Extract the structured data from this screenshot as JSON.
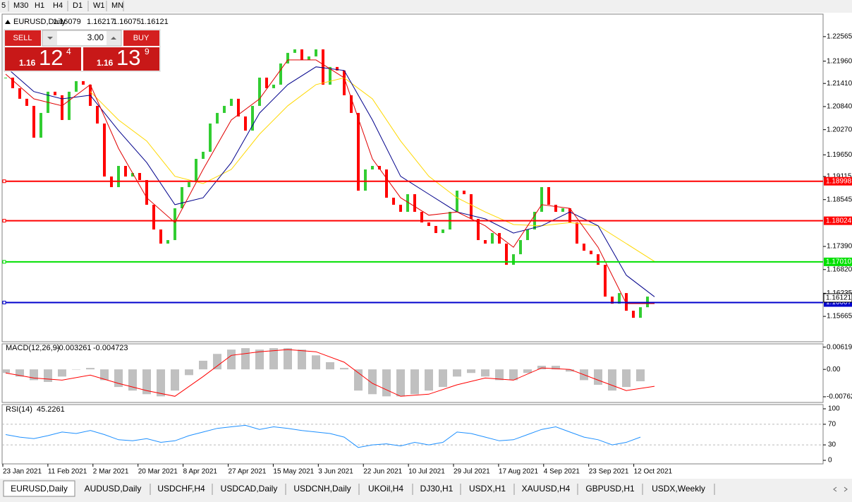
{
  "toolbar": {
    "periods": [
      "5",
      "M30",
      "H1",
      "H4",
      "D1",
      "W1",
      "MN"
    ]
  },
  "trade_panel": {
    "sell": "SELL",
    "buy": "BUY",
    "volume": "3.00",
    "bid": {
      "big": "1.16",
      "pips": "12",
      "point": "4"
    },
    "ask": {
      "big": "1.16",
      "pips": "13",
      "point": "9"
    }
  },
  "price_chart": {
    "type": "candlestick",
    "title": "EURUSD,Daily",
    "ohlc": [
      1.16079,
      1.16217,
      1.16075,
      1.16121
    ],
    "ylim": [
      1.1504,
      1.2312
    ],
    "yticks": [
      1.22565,
      {
        "value": 1.2196,
        "label": "1.21960"
      },
      {
        "value": 1.2141,
        "label": "1.21410"
      },
      {
        "value": 1.2084,
        "label": "1.20840"
      },
      {
        "value": 1.2027,
        "label": "1.20270"
      },
      {
        "value": 1.1965,
        "label": "1.19650"
      },
      1.19115,
      1.18545,
      {
        "value": 1.1739,
        "label": "1.17390"
      },
      {
        "value": 1.1682,
        "label": "1.16820"
      },
      1.16235,
      1.15665
    ],
    "up_color": "#32cd32",
    "down_color": "#ff0000",
    "closes": [
      1.21554,
      1.21293,
      1.21032,
      1.20857,
      1.20073,
      1.20683,
      1.21206,
      1.21119,
      1.20509,
      1.21206,
      1.21467,
      1.2138,
      1.20857,
      1.20422,
      1.19115,
      1.18853,
      1.19376,
      1.19115,
      1.19202,
      1.19028,
      1.18418,
      1.17808,
      1.1746,
      1.17547,
      1.18331,
      1.18853,
      1.18975,
      1.1955,
      1.19725,
      1.20422,
      1.20683,
      1.20857,
      1.21032,
      1.20596,
      1.20247,
      1.20857,
      1.21554,
      1.21293,
      1.2138,
      1.21903,
      1.22164,
      1.22251,
      1.2199,
      1.22077,
      1.22251,
      1.2138,
      1.21816,
      1.21729,
      1.21119,
      1.20683,
      1.18766,
      1.19289,
      1.19376,
      1.19289,
      1.18592,
      1.18418,
      1.18244,
      1.18679,
      1.18244,
      1.17982,
      1.17895,
      1.17721,
      1.17808,
      1.18244,
      1.18766,
      1.18679,
      1.18069,
      1.17547,
      1.1746,
      1.17721,
      1.1746,
      1.16937,
      1.17198,
      1.17547,
      1.17808,
      1.18244,
      1.18853,
      1.18418,
      1.18244,
      1.18331,
      1.17982,
      1.1746,
      1.17285,
      1.17198,
      1.16937,
      1.16153,
      1.15978,
      1.1624,
      1.15804,
      1.1563,
      1.15891,
      1.16153
    ],
    "ma": [
      {
        "color": "#ffd800",
        "values": [
          null,
          null,
          null,
          1.2121,
          1.2051,
          1.1999,
          1.1912,
          1.1894,
          1.1929,
          1.2016,
          1.2086,
          1.2138,
          1.2155,
          1.2103,
          1.1999,
          1.1912,
          1.1859,
          1.1824,
          1.1793,
          1.179,
          1.1798,
          1.179,
          1.1746,
          1.1702
        ]
      },
      {
        "color": "#00008b",
        "values": [
          1.2182,
          1.2121,
          1.2103,
          1.2112,
          1.2025,
          1.1946,
          1.1842,
          1.1859,
          1.1946,
          1.2068,
          1.2138,
          1.2182,
          1.2173,
          1.2051,
          1.1912,
          1.1868,
          1.1824,
          1.1807,
          1.1772,
          1.179,
          1.1824,
          1.179,
          1.1668,
          1.1615
        ]
      },
      {
        "color": "#e00000",
        "values": [
          1.2164,
          1.2103,
          1.2086,
          1.2138,
          1.1981,
          1.1859,
          1.1798,
          1.1929,
          1.2051,
          1.2103,
          1.2199,
          1.2199,
          1.2155,
          1.1955,
          1.1859,
          1.1816,
          1.1824,
          1.179,
          1.1737,
          1.1842,
          1.1833,
          1.1737,
          1.1598,
          1.1598
        ]
      }
    ],
    "levels": [
      {
        "price": 1.18998,
        "color": "#ff0000"
      },
      {
        "price": 1.18024,
        "color": "#ff0000"
      },
      {
        "price": {
          "value": 1.1701,
          "label": "1.17010"
        },
        "color": "#00e000"
      },
      {
        "price": 1.16007,
        "color": "#0000cd"
      }
    ],
    "current_price": 1.16121
  },
  "macd": {
    "type": "bar",
    "title": "MACD(12,26,9)",
    "readouts": [
      -0.003261,
      -0.004723
    ],
    "ylim": [
      -0.0092,
      0.0071
    ],
    "yticks": [
      0.006193,
      {
        "value": 0,
        "label": "0.00"
      },
      -0.007621
    ],
    "histogram_color": "#c0c0c0",
    "histogram": [
      -0.001,
      -0.002,
      -0.003,
      -0.0035,
      -0.002,
      0,
      0.0004,
      -0.003,
      -0.0049,
      -0.0059,
      -0.0069,
      -0.0075,
      -0.0059,
      -0.0016,
      0.0024,
      0.0043,
      0.0055,
      0.0059,
      0.0055,
      0.0059,
      0.0059,
      0.0055,
      0.0039,
      0.002,
      0.0004,
      -0.0059,
      -0.0069,
      -0.0075,
      -0.0075,
      -0.0069,
      -0.0059,
      -0.0049,
      -0.002,
      -0.001,
      -0.002,
      -0.003,
      -0.003,
      -0.001,
      0.001,
      0.001,
      -0.0006,
      -0.003,
      -0.0043,
      -0.0059,
      -0.0049,
      -0.0033
    ],
    "signal": {
      "color": "#ff0000",
      "values": [
        -0.001,
        -0.0024,
        -0.003,
        -0.0016,
        -0.0039,
        -0.0059,
        -0.0075,
        -0.002,
        0.0039,
        0.0049,
        0.0055,
        0.0049,
        0.002,
        -0.0039,
        -0.0075,
        -0.0069,
        -0.0043,
        -0.0024,
        -0.003,
        0.0004,
        0,
        -0.003,
        -0.0059,
        -0.0047
      ]
    }
  },
  "rsi": {
    "type": "line",
    "title": "RSI(14)",
    "readout": 45.2261,
    "ylim": [
      0,
      100
    ],
    "yticks": [
      100,
      70,
      30,
      0
    ],
    "levels": [
      70,
      30
    ],
    "color": "#1e90ff",
    "values": [
      50,
      45,
      42,
      48,
      55,
      52,
      58,
      50,
      40,
      38,
      42,
      35,
      38,
      48,
      55,
      62,
      65,
      68,
      60,
      65,
      62,
      58,
      55,
      52,
      45,
      25,
      30,
      32,
      28,
      35,
      30,
      35,
      55,
      52,
      45,
      38,
      40,
      50,
      60,
      65,
      55,
      45,
      40,
      30,
      35,
      45
    ]
  },
  "x_axis": {
    "dates": [
      "23 Jan 2021",
      "11 Feb 2021",
      "2 Mar 2021",
      "20 Mar 2021",
      "8 Apr 2021",
      "27 Apr 2021",
      "15 May 2021",
      "3 Jun 2021",
      "22 Jun 2021",
      "10 Jul 2021",
      "29 Jul 2021",
      "17 Aug 2021",
      "4 Sep 2021",
      "23 Sep 2021",
      "12 Oct 2021"
    ]
  },
  "tabs": [
    "EURUSD,Daily",
    "AUDUSD,Daily",
    "USDCHF,H4",
    "USDCAD,Daily",
    "USDCNH,Daily",
    "UKOil,H4",
    "DJ30,H1",
    "USDX,H1",
    "XAUUSD,H4",
    "GBPUSD,H1",
    "USDX,Weekly"
  ]
}
